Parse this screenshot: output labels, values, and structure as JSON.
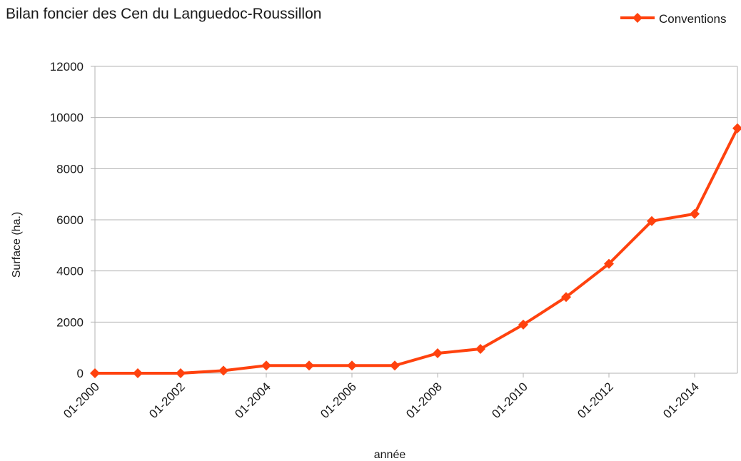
{
  "chart_data": {
    "type": "line",
    "title": "Bilan foncier des Cen du Languedoc-Roussillon",
    "xlabel": "année",
    "ylabel": "Surface (ha.)",
    "ylim": [
      0,
      12000
    ],
    "y_ticks": [
      0,
      2000,
      4000,
      6000,
      8000,
      10000,
      12000
    ],
    "x_tick_labels": [
      "01-2000",
      "01-2002",
      "01-2004",
      "01-2006",
      "01-2008",
      "01-2010",
      "01-2012",
      "01-2014"
    ],
    "x": [
      "01-2000",
      "01-2001",
      "01-2002",
      "01-2003",
      "01-2004",
      "01-2005",
      "01-2006",
      "01-2007",
      "01-2008",
      "01-2009",
      "01-2010",
      "01-2011",
      "01-2012",
      "01-2013",
      "01-2014",
      "01-2015"
    ],
    "series": [
      {
        "name": "Conventions",
        "color": "#ff420e",
        "marker": "diamond",
        "values": [
          0,
          0,
          0,
          100,
          300,
          300,
          300,
          300,
          780,
          950,
          1900,
          2980,
          4280,
          5950,
          6230,
          9580
        ]
      }
    ],
    "grid": "horizontal",
    "legend_position": "top-right"
  }
}
